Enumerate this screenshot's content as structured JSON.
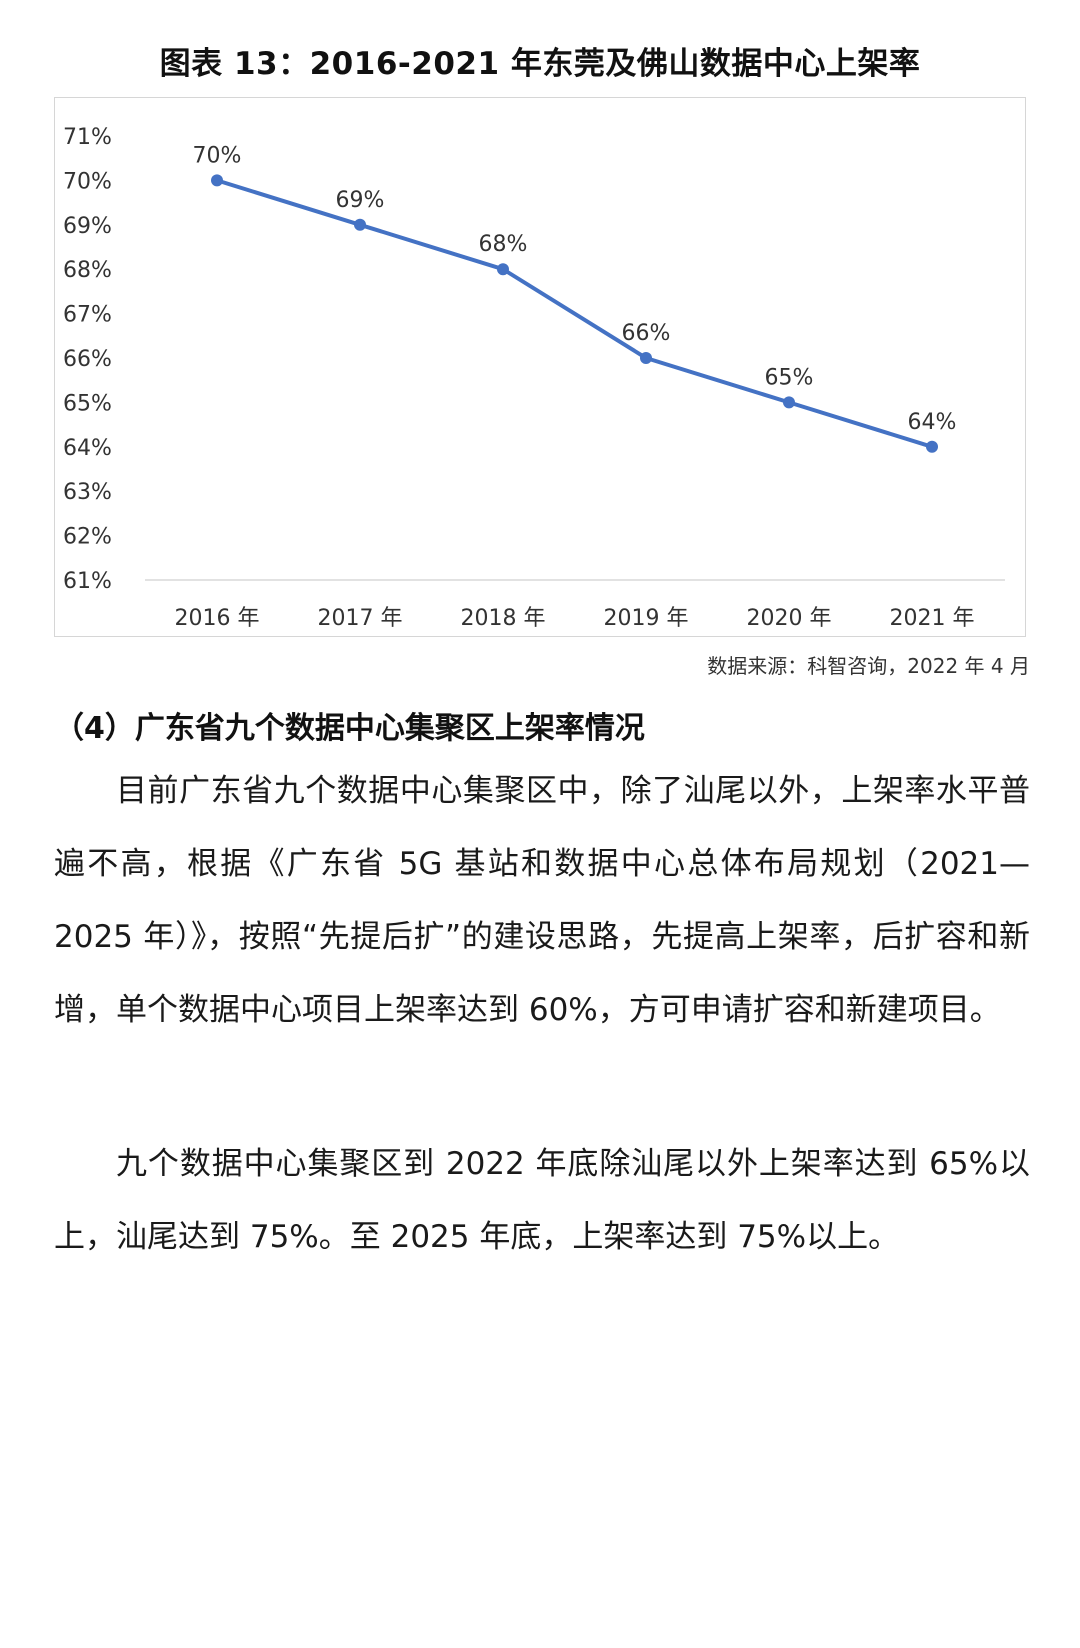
{
  "chart": {
    "title": "图表 13：2016-2021 年东莞及佛山数据中心上架率",
    "source": "数据来源：科智咨询，2022 年 4 月"
  },
  "chart_data": {
    "type": "line",
    "title": "图表 13：2016-2021 年东莞及佛山数据中心上架率",
    "categories": [
      "2016 年",
      "2017 年",
      "2018 年",
      "2019 年",
      "2020 年",
      "2021 年"
    ],
    "series": [
      {
        "values": [
          70,
          69,
          68,
          66,
          65,
          64
        ],
        "labels": [
          "70%",
          "69%",
          "68%",
          "66%",
          "65%",
          "64%"
        ]
      }
    ],
    "y_ticks": [
      "61%",
      "62%",
      "63%",
      "64%",
      "65%",
      "66%",
      "67%",
      "68%",
      "69%",
      "70%",
      "71%"
    ],
    "ylim": [
      61,
      71
    ],
    "grid": false,
    "baseline": true,
    "color": "#4472C4"
  },
  "section": {
    "heading": "（4）广东省九个数据中心集聚区上架率情况",
    "para1": "目前广东省九个数据中心集聚区中，除了汕尾以外，上架率水平普遍不高，根据《广东省 5G 基站和数据中心总体布局规划（2021—2025 年）》，按照“先提后扩”的建设思路，先提高上架率，后扩容和新增，单个数据中心项目上架率达到 60%，方可申请扩容和新建项目。",
    "para2": "九个数据中心集聚区到 2022 年底除汕尾以外上架率达到 65%以上，汕尾达到 75%。至 2025 年底，上架率达到 75%以上。"
  }
}
